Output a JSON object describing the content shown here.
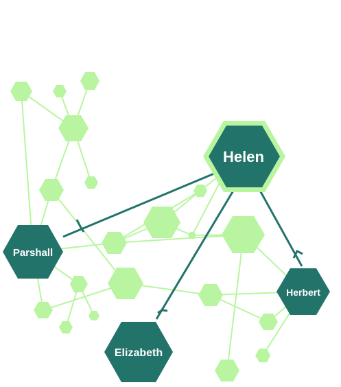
{
  "colors": {
    "light_node": "#b9f5a0",
    "light_edge": "#b9f5a0",
    "dark_node": "#22736a",
    "dark_edge": "#23736a",
    "background": "#ffffff"
  },
  "people": {
    "helen": "Helen",
    "parshall": "Parshall",
    "elizabeth": "Elizabeth",
    "herbert": "Herbert"
  },
  "relationships": [
    {
      "from": "Helen",
      "to": "Parshall"
    },
    {
      "from": "Helen",
      "to": "Elizabeth"
    },
    {
      "from": "Helen",
      "to": "Herbert"
    }
  ]
}
